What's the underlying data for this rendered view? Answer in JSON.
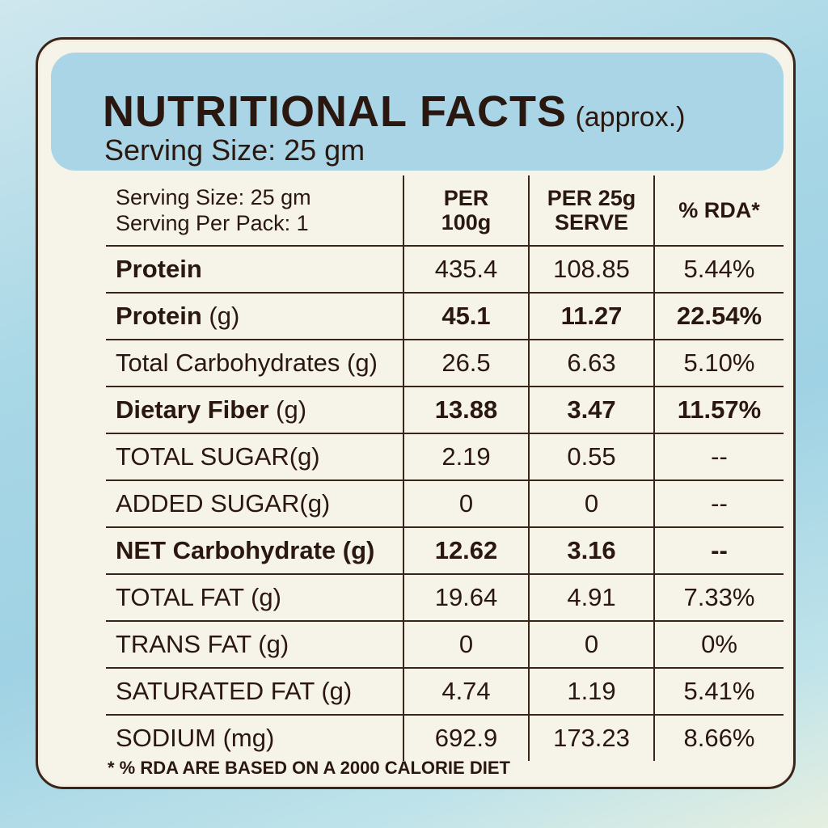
{
  "header": {
    "title": "NUTRITIONAL FACTS",
    "title_suffix": "(approx.)",
    "serving": "Serving Size: 25 gm"
  },
  "table": {
    "head": {
      "serving_size": "Serving Size: 25 gm",
      "serving_per_pack": "Serving Per Pack: 1",
      "col_per100_line1": "PER",
      "col_per100_line2": "100g",
      "col_per25_line1": "PER 25g",
      "col_per25_line2": "SERVE",
      "col_rda": "% RDA*"
    },
    "rows": [
      {
        "name": "Protein",
        "unit": "",
        "per100": "435.4",
        "per25": "108.85",
        "rda": "5.44%"
      },
      {
        "name": "Protein",
        "unit": " (g)",
        "per100": "45.1",
        "per25": "11.27",
        "rda": "22.54%"
      },
      {
        "name": "Total Carbohydrates (g)",
        "unit": "",
        "per100": "26.5",
        "per25": "6.63",
        "rda": "5.10%"
      },
      {
        "name": "Dietary Fiber",
        "unit": " (g)",
        "per100": "13.88",
        "per25": "3.47",
        "rda": "11.57%"
      },
      {
        "name": "TOTAL SUGAR(g)",
        "unit": "",
        "per100": "2.19",
        "per25": "0.55",
        "rda": "--"
      },
      {
        "name": "ADDED SUGAR(g)",
        "unit": "",
        "per100": "0",
        "per25": "0",
        "rda": "--"
      },
      {
        "name": "NET Carbohydrate",
        "unit": " (g)",
        "per100": "12.62",
        "per25": "3.16",
        "rda": "--"
      },
      {
        "name": "TOTAL FAT (g)",
        "unit": "",
        "per100": "19.64",
        "per25": "4.91",
        "rda": "7.33%"
      },
      {
        "name": "TRANS FAT (g)",
        "unit": "",
        "per100": "0",
        "per25": "0",
        "rda": "0%"
      },
      {
        "name": "SATURATED FAT (g)",
        "unit": "",
        "per100": "4.74",
        "per25": "1.19",
        "rda": "5.41%"
      },
      {
        "name": "SODIUM (mg)",
        "unit": "",
        "per100": "692.9",
        "per25": "173.23",
        "rda": "8.66%"
      }
    ]
  },
  "footnote": "* % RDA ARE BASED ON A 2000 CALORIE DIET"
}
